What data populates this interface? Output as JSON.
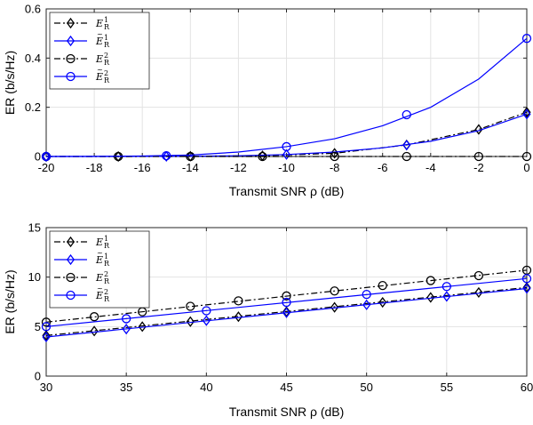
{
  "chart_data": [
    {
      "type": "line",
      "xlabel": "Transmit SNR  ρ (dB)",
      "ylabel": "ER (b/s/Hz)",
      "xlim": [
        -20,
        0
      ],
      "ylim": [
        0,
        0.6
      ],
      "xticks": [
        "-20",
        "-18",
        "-16",
        "-14",
        "-12",
        "-10",
        "-8",
        "-6",
        "-4",
        "-2",
        "0"
      ],
      "yticks": [
        "0",
        "0.2",
        "0.4",
        "0.6"
      ],
      "grid": true,
      "legend_position": "top-left",
      "series": [
        {
          "name_base": "E",
          "name_sup": "1",
          "name_sub": "R",
          "tilde": false,
          "color": "#000000",
          "dash": "dashdot",
          "marker": "diamond",
          "line": [
            [
              -20,
              0
            ],
            [
              -17,
              0
            ],
            [
              -14,
              0.001
            ],
            [
              -11,
              0.003
            ],
            [
              -8,
              0.013
            ],
            [
              -5,
              0.047
            ],
            [
              -2,
              0.11
            ],
            [
              0,
              0.18
            ]
          ],
          "markers": [
            [
              -20,
              0
            ],
            [
              -17,
              0
            ],
            [
              -14,
              0.001
            ],
            [
              -11,
              0.003
            ],
            [
              -8,
              0.013
            ],
            [
              -5,
              0.047
            ],
            [
              -2,
              0.11
            ],
            [
              0,
              0.18
            ]
          ]
        },
        {
          "name_base": "E",
          "name_sup": "1",
          "name_sub": "R",
          "tilde": true,
          "color": "#0000ff",
          "dash": "solid",
          "marker": "diamond",
          "line": [
            [
              -20,
              0
            ],
            [
              -18,
              0
            ],
            [
              -16,
              0.0002
            ],
            [
              -14,
              0.001
            ],
            [
              -12,
              0.003
            ],
            [
              -10,
              0.008
            ],
            [
              -8,
              0.018
            ],
            [
              -6,
              0.035
            ],
            [
              -4,
              0.062
            ],
            [
              -2,
              0.105
            ],
            [
              0,
              0.172
            ]
          ],
          "markers": [
            [
              -20,
              0
            ],
            [
              -15,
              0.0005
            ],
            [
              -10,
              0.008
            ],
            [
              -5,
              0.046
            ],
            [
              0,
              0.172
            ]
          ]
        },
        {
          "name_base": "E",
          "name_sup": "2",
          "name_sub": "R",
          "tilde": false,
          "color": "#000000",
          "dash": "dashdot",
          "marker": "circle",
          "line": [
            [
              -20,
              0
            ],
            [
              0,
              0
            ]
          ],
          "markers": [
            [
              -20,
              0
            ],
            [
              -17,
              0
            ],
            [
              -14,
              0
            ],
            [
              -11,
              0
            ],
            [
              -8,
              0
            ],
            [
              -5,
              0
            ],
            [
              -2,
              0
            ],
            [
              0,
              0
            ]
          ]
        },
        {
          "name_base": "E",
          "name_sup": "2",
          "name_sub": "R",
          "tilde": true,
          "color": "#0000ff",
          "dash": "solid",
          "marker": "circle",
          "line": [
            [
              -20,
              0
            ],
            [
              -18,
              0.0005
            ],
            [
              -16,
              0.002
            ],
            [
              -14,
              0.006
            ],
            [
              -12,
              0.018
            ],
            [
              -10,
              0.04
            ],
            [
              -8,
              0.072
            ],
            [
              -6,
              0.125
            ],
            [
              -4,
              0.2
            ],
            [
              -2,
              0.315
            ],
            [
              0,
              0.48
            ]
          ],
          "markers": [
            [
              -20,
              0
            ],
            [
              -15,
              0.003
            ],
            [
              -10,
              0.04
            ],
            [
              -5,
              0.17
            ],
            [
              0,
              0.48
            ]
          ]
        }
      ]
    },
    {
      "type": "line",
      "xlabel": "Transmit SNR  ρ (dB)",
      "ylabel": "ER (b/s/Hz)",
      "xlim": [
        30,
        60
      ],
      "ylim": [
        0,
        15
      ],
      "xticks": [
        "30",
        "35",
        "40",
        "45",
        "50",
        "55",
        "60"
      ],
      "yticks": [
        "0",
        "5",
        "10",
        "15"
      ],
      "grid": true,
      "legend_position": "top-left",
      "series": [
        {
          "name_base": "E",
          "name_sup": "1",
          "name_sub": "R",
          "tilde": false,
          "color": "#000000",
          "dash": "dashdot",
          "marker": "diamond",
          "line": [
            [
              30,
              4.1
            ],
            [
              60,
              8.95
            ]
          ],
          "markers": [
            [
              30,
              4.1
            ],
            [
              33,
              4.55
            ],
            [
              36,
              5.0
            ],
            [
              39,
              5.5
            ],
            [
              42,
              6.0
            ],
            [
              45,
              6.5
            ],
            [
              48,
              6.95
            ],
            [
              51,
              7.45
            ],
            [
              54,
              7.95
            ],
            [
              57,
              8.45
            ],
            [
              60,
              8.95
            ]
          ]
        },
        {
          "name_base": "E",
          "name_sup": "1",
          "name_sub": "R",
          "tilde": true,
          "color": "#0000ff",
          "dash": "solid",
          "marker": "diamond",
          "line": [
            [
              30,
              3.95
            ],
            [
              60,
              8.85
            ]
          ],
          "markers": [
            [
              30,
              3.95
            ],
            [
              35,
              4.75
            ],
            [
              40,
              5.6
            ],
            [
              45,
              6.4
            ],
            [
              50,
              7.2
            ],
            [
              55,
              8.05
            ],
            [
              60,
              8.85
            ]
          ]
        },
        {
          "name_base": "E",
          "name_sup": "2",
          "name_sub": "R",
          "tilde": false,
          "color": "#000000",
          "dash": "dashdot",
          "marker": "circle",
          "line": [
            [
              30,
              5.45
            ],
            [
              60,
              10.7
            ]
          ],
          "markers": [
            [
              30,
              5.45
            ],
            [
              33,
              6.0
            ],
            [
              36,
              6.5
            ],
            [
              39,
              7.05
            ],
            [
              42,
              7.6
            ],
            [
              45,
              8.1
            ],
            [
              48,
              8.6
            ],
            [
              51,
              9.15
            ],
            [
              54,
              9.65
            ],
            [
              57,
              10.15
            ],
            [
              60,
              10.7
            ]
          ]
        },
        {
          "name_base": "E",
          "name_sup": "2",
          "name_sub": "R",
          "tilde": true,
          "color": "#0000ff",
          "dash": "solid",
          "marker": "circle",
          "line": [
            [
              30,
              5.0
            ],
            [
              60,
              9.85
            ]
          ],
          "markers": [
            [
              30,
              5.0
            ],
            [
              35,
              5.8
            ],
            [
              40,
              6.6
            ],
            [
              45,
              7.45
            ],
            [
              50,
              8.25
            ],
            [
              55,
              9.05
            ],
            [
              60,
              9.85
            ]
          ]
        }
      ]
    }
  ]
}
